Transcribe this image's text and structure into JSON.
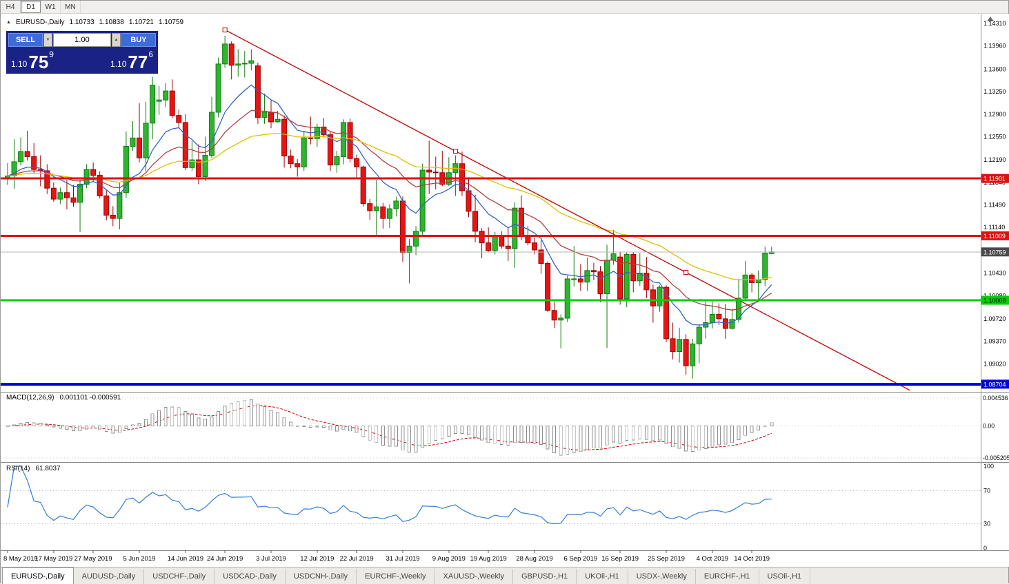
{
  "toolbar": {
    "timeframes": [
      {
        "label": "H4",
        "active": false
      },
      {
        "label": "D1",
        "active": true
      },
      {
        "label": "W1",
        "active": false
      },
      {
        "label": "MN",
        "active": false
      }
    ]
  },
  "icons": {
    "lot_down": "▼",
    "lot_up": "▲",
    "chart_marker": "▲"
  },
  "chart": {
    "symbol_period": "EURUSD-,Daily",
    "open": "1.10733",
    "high": "1.10838",
    "low": "1.10721",
    "close": "1.10759"
  },
  "trade_panel": {
    "sell_label": "SELL",
    "buy_label": "BUY",
    "lot_size": "1.00",
    "sell_price": {
      "prefix": "1.10",
      "pips": "75",
      "pipette": "9"
    },
    "buy_price": {
      "prefix": "1.10",
      "pips": "77",
      "pipette": "6"
    },
    "panel_color": "#1B2286",
    "button_color": "#3D6CD9"
  },
  "chart_data": {
    "type": "candlestick",
    "symbol": "EURUSD",
    "period": "Daily",
    "style": {
      "up_color": "#2FB42F",
      "up_border": "#0E7C0E",
      "down_color": "#E81414",
      "down_border": "#9C0000"
    },
    "candles": [
      [
        1.119,
        1.1214,
        1.118,
        1.1194
      ],
      [
        1.1194,
        1.1251,
        1.1174,
        1.1216
      ],
      [
        1.1216,
        1.1254,
        1.121,
        1.1232
      ],
      [
        1.1232,
        1.1264,
        1.1218,
        1.1224
      ],
      [
        1.1224,
        1.1245,
        1.1198,
        1.1204
      ],
      [
        1.1204,
        1.1226,
        1.1178,
        1.1202
      ],
      [
        1.1202,
        1.1212,
        1.1166,
        1.1175
      ],
      [
        1.1175,
        1.1184,
        1.1154,
        1.1158
      ],
      [
        1.1158,
        1.1176,
        1.115,
        1.1168
      ],
      [
        1.1168,
        1.1188,
        1.1142,
        1.116
      ],
      [
        1.116,
        1.118,
        1.1146,
        1.1153
      ],
      [
        1.1153,
        1.1188,
        1.1107,
        1.1181
      ],
      [
        1.1181,
        1.1212,
        1.1175,
        1.1204
      ],
      [
        1.1204,
        1.1215,
        1.1186,
        1.1195
      ],
      [
        1.1195,
        1.1201,
        1.1159,
        1.1163
      ],
      [
        1.1163,
        1.1172,
        1.1125,
        1.1133
      ],
      [
        1.1133,
        1.1147,
        1.1116,
        1.1128
      ],
      [
        1.1128,
        1.1183,
        1.1111,
        1.1168
      ],
      [
        1.1168,
        1.1263,
        1.116,
        1.124
      ],
      [
        1.124,
        1.1279,
        1.1233,
        1.1253
      ],
      [
        1.1253,
        1.1307,
        1.1215,
        1.1222
      ],
      [
        1.1222,
        1.1309,
        1.1201,
        1.1276
      ],
      [
        1.1276,
        1.1348,
        1.1251,
        1.1335
      ],
      [
        1.131,
        1.1334,
        1.1289,
        1.1312
      ],
      [
        1.1312,
        1.1338,
        1.1301,
        1.1326
      ],
      [
        1.1326,
        1.1344,
        1.1284,
        1.1288
      ],
      [
        1.1288,
        1.1297,
        1.1268,
        1.1277
      ],
      [
        1.1277,
        1.129,
        1.1203,
        1.1207
      ],
      [
        1.1207,
        1.1248,
        1.1202,
        1.1219
      ],
      [
        1.1219,
        1.1243,
        1.1181,
        1.1193
      ],
      [
        1.1193,
        1.1255,
        1.1186,
        1.1226
      ],
      [
        1.1226,
        1.1317,
        1.1222,
        1.1293
      ],
      [
        1.1293,
        1.1378,
        1.1285,
        1.1368
      ],
      [
        1.1368,
        1.1412,
        1.1362,
        1.1399
      ],
      [
        1.1399,
        1.1403,
        1.1344,
        1.1366
      ],
      [
        1.1366,
        1.1391,
        1.1348,
        1.1368
      ],
      [
        1.1368,
        1.1388,
        1.1347,
        1.1369
      ],
      [
        1.1369,
        1.1391,
        1.1358,
        1.1373
      ],
      [
        1.1365,
        1.137,
        1.1275,
        1.1285
      ],
      [
        1.1285,
        1.1322,
        1.1275,
        1.1293
      ],
      [
        1.1293,
        1.1312,
        1.1268,
        1.1278
      ],
      [
        1.1278,
        1.1295,
        1.1277,
        1.1282
      ],
      [
        1.1282,
        1.1288,
        1.1207,
        1.1225
      ],
      [
        1.1225,
        1.1235,
        1.1206,
        1.1213
      ],
      [
        1.1213,
        1.122,
        1.1193,
        1.1208
      ],
      [
        1.1208,
        1.1264,
        1.1202,
        1.1253
      ],
      [
        1.1253,
        1.1286,
        1.1243,
        1.1252
      ],
      [
        1.1252,
        1.1275,
        1.1239,
        1.127
      ],
      [
        1.127,
        1.1284,
        1.1254,
        1.1258
      ],
      [
        1.1258,
        1.1262,
        1.1202,
        1.1211
      ],
      [
        1.1211,
        1.1233,
        1.1199,
        1.1224
      ],
      [
        1.1224,
        1.1282,
        1.1212,
        1.1277
      ],
      [
        1.1277,
        1.1283,
        1.1215,
        1.1221
      ],
      [
        1.1221,
        1.1227,
        1.1192,
        1.1208
      ],
      [
        1.1208,
        1.121,
        1.1146,
        1.1151
      ],
      [
        1.1151,
        1.1158,
        1.1126,
        1.114
      ],
      [
        1.114,
        1.1188,
        1.1101,
        1.1146
      ],
      [
        1.1146,
        1.1152,
        1.1112,
        1.1128
      ],
      [
        1.1128,
        1.115,
        1.1113,
        1.1143
      ],
      [
        1.1143,
        1.1162,
        1.1131,
        1.1155
      ],
      [
        1.1155,
        1.1162,
        1.106,
        1.1075
      ],
      [
        1.1075,
        1.1096,
        1.1027,
        1.1085
      ],
      [
        1.1085,
        1.1116,
        1.1071,
        1.1108
      ],
      [
        1.1108,
        1.1213,
        1.1101,
        1.1203
      ],
      [
        1.1203,
        1.1249,
        1.1166,
        1.12
      ],
      [
        1.12,
        1.1224,
        1.1173,
        1.1199
      ],
      [
        1.1199,
        1.1233,
        1.1178,
        1.1181
      ],
      [
        1.1181,
        1.1223,
        1.1178,
        1.1199
      ],
      [
        1.1199,
        1.1226,
        1.1163,
        1.1213
      ],
      [
        1.1213,
        1.1232,
        1.1163,
        1.1171
      ],
      [
        1.1171,
        1.1192,
        1.113,
        1.1139
      ],
      [
        1.1139,
        1.1165,
        1.1091,
        1.1108
      ],
      [
        1.1108,
        1.1113,
        1.1066,
        1.109
      ],
      [
        1.109,
        1.1114,
        1.1075,
        1.1078
      ],
      [
        1.1078,
        1.1107,
        1.1072,
        1.11
      ],
      [
        1.11,
        1.1108,
        1.1081,
        1.1085
      ],
      [
        1.1085,
        1.1113,
        1.1062,
        1.1081
      ],
      [
        1.1081,
        1.1153,
        1.1051,
        1.1144
      ],
      [
        1.1144,
        1.1164,
        1.1094,
        1.1101
      ],
      [
        1.1101,
        1.1116,
        1.1086,
        1.109
      ],
      [
        1.109,
        1.1098,
        1.1072,
        1.1079
      ],
      [
        1.1079,
        1.1094,
        1.1042,
        1.1058
      ],
      [
        1.1058,
        1.1061,
        1.0983,
        1.0985
      ],
      [
        1.0985,
        1.0998,
        1.0958,
        1.097
      ],
      [
        1.097,
        1.0979,
        1.0926,
        1.0973
      ],
      [
        1.0973,
        1.1039,
        1.0967,
        1.1034
      ],
      [
        1.1034,
        1.1085,
        1.1022,
        1.1034
      ],
      [
        1.1034,
        1.1057,
        1.1015,
        1.1029
      ],
      [
        1.1029,
        1.1067,
        1.1015,
        1.1047
      ],
      [
        1.1047,
        1.1059,
        1.1032,
        1.1045
      ],
      [
        1.1045,
        1.1054,
        1.0998,
        1.1011
      ],
      [
        1.1011,
        1.1087,
        1.0927,
        1.1063
      ],
      [
        1.1063,
        1.111,
        1.1056,
        1.1073
      ],
      [
        1.1068,
        1.1076,
        1.0994,
        1.1003
      ],
      [
        1.1003,
        1.1075,
        1.099,
        1.1072
      ],
      [
        1.1072,
        1.1076,
        1.1013,
        1.1031
      ],
      [
        1.1031,
        1.1074,
        1.1023,
        1.1043
      ],
      [
        1.1043,
        1.1068,
        1.1004,
        1.1017
      ],
      [
        1.1017,
        1.1025,
        1.0966,
        1.0992
      ],
      [
        1.0992,
        1.1024,
        1.0983,
        1.1021
      ],
      [
        1.1021,
        1.1024,
        1.0936,
        1.0941
      ],
      [
        1.0941,
        1.0966,
        1.0909,
        1.0921
      ],
      [
        1.0921,
        1.0958,
        1.0904,
        1.094
      ],
      [
        1.094,
        1.0948,
        1.0885,
        1.0899
      ],
      [
        1.0899,
        1.0941,
        1.0879,
        1.0933
      ],
      [
        1.0933,
        1.0964,
        1.0903,
        1.0959
      ],
      [
        1.0959,
        1.0999,
        1.0941,
        1.0966
      ],
      [
        1.0966,
        1.0999,
        1.0957,
        1.0979
      ],
      [
        1.0979,
        1.0996,
        1.0962,
        1.0972
      ],
      [
        1.0972,
        1.0995,
        1.0941,
        1.0957
      ],
      [
        1.0957,
        1.0987,
        1.0955,
        1.0971
      ],
      [
        1.0971,
        1.1034,
        1.0966,
        1.1004
      ],
      [
        1.1004,
        1.1062,
        1.1002,
        1.104
      ],
      [
        1.104,
        1.1043,
        1.1013,
        1.1028
      ],
      [
        1.1028,
        1.1047,
        1.1001,
        1.1033
      ],
      [
        1.1033,
        1.1084,
        1.1023,
        1.1074
      ],
      [
        1.10733,
        1.10838,
        1.10721,
        1.10759
      ]
    ],
    "date_labels": [
      {
        "index": 0,
        "label": "8 May 2019"
      },
      {
        "index": 7,
        "label": "17 May 2019"
      },
      {
        "index": 13,
        "label": "27 May 2019"
      },
      {
        "index": 20,
        "label": "5 Jun 2019"
      },
      {
        "index": 27,
        "label": "14 Jun 2019"
      },
      {
        "index": 33,
        "label": "24 Jun 2019"
      },
      {
        "index": 40,
        "label": "3 Jul 2019"
      },
      {
        "index": 47,
        "label": "12 Jul 2019"
      },
      {
        "index": 53,
        "label": "22 Jul 2019"
      },
      {
        "index": 60,
        "label": "31 Jul 2019"
      },
      {
        "index": 67,
        "label": "9 Aug 2019"
      },
      {
        "index": 73,
        "label": "19 Aug 2019"
      },
      {
        "index": 80,
        "label": "28 Aug 2019"
      },
      {
        "index": 87,
        "label": "6 Sep 2019"
      },
      {
        "index": 93,
        "label": "16 Sep 2019"
      },
      {
        "index": 100,
        "label": "25 Sep 2019"
      },
      {
        "index": 107,
        "label": "4 Oct 2019"
      },
      {
        "index": 113,
        "label": "14 Oct 2019"
      }
    ],
    "price_axis_labels": [
      "1.14310",
      "1.13960",
      "1.13600",
      "1.13250",
      "1.12900",
      "1.12550",
      "1.12190",
      "1.11840",
      "1.11490",
      "1.11140",
      "1.10790",
      "1.10430",
      "1.10080",
      "1.09720",
      "1.09370",
      "1.09020",
      "1.08670"
    ],
    "hlines": [
      {
        "price": 1.11901,
        "label": "1.11901",
        "color": "#E01010",
        "text_color": "#FFFFFF",
        "thickness": 3
      },
      {
        "price": 1.11009,
        "label": "1.11009",
        "color": "#E01010",
        "text_color": "#FFFFFF",
        "thickness": 3
      },
      {
        "price": 1.10008,
        "label": "1.10008",
        "color": "#00CF00",
        "text_color": "#000000",
        "thickness": 3
      },
      {
        "price": 1.08704,
        "label": "1.08704",
        "color": "#0000E0",
        "text_color": "#FFFFFF",
        "thickness": 4
      }
    ],
    "current_price": {
      "value": 1.10759,
      "label": "1.10759",
      "tag_color": "#4A4A4A",
      "text_color": "#FFFFFF",
      "line_color": "#B5B5B5"
    },
    "trendline": {
      "bar1": 33,
      "price1": 1.1421,
      "bar2": 103,
      "price2": 1.1044,
      "extend_bar": 137,
      "handles": [
        33,
        68,
        103
      ],
      "color": "#C40000"
    },
    "moving_averages": [
      {
        "period": 10,
        "color": "#2E62C8"
      },
      {
        "period": 21,
        "color": "#B04040"
      },
      {
        "period": 45,
        "color": "#E3BE00"
      }
    ],
    "macd": {
      "label": "MACD(12,26,9)",
      "values_text": "0.001101 -0.000591",
      "params": [
        12,
        26,
        9
      ],
      "axis": [
        {
          "label": "0.004536",
          "value": 0.004536
        },
        {
          "label": "0.00",
          "value": 0
        },
        {
          "label": "-0.005205",
          "value": -0.005205
        }
      ],
      "histogram_color": "#909090",
      "signal_color": "#CC0000"
    },
    "rsi": {
      "label": "RSI(14)",
      "value_text": "61.8037",
      "period": 14,
      "axis": [
        {
          "label": "100",
          "value": 100
        },
        {
          "label": "70",
          "value": 70
        },
        {
          "label": "30",
          "value": 30
        },
        {
          "label": "0",
          "value": 0
        }
      ],
      "levels": [
        70,
        30
      ],
      "line_color": "#2F7ED8"
    }
  },
  "tabs": [
    {
      "label": "EURUSD-,Daily",
      "active": true
    },
    {
      "label": "AUDUSD-,Daily",
      "active": false
    },
    {
      "label": "USDCHF-,Daily",
      "active": false
    },
    {
      "label": "USDCAD-,Daily",
      "active": false
    },
    {
      "label": "USDCNH-,Daily",
      "active": false
    },
    {
      "label": "EURCHF-,Weekly",
      "active": false
    },
    {
      "label": "XAUUSD-,Weekly",
      "active": false
    },
    {
      "label": "GBPUSD-,H1",
      "active": false
    },
    {
      "label": "UKOil-,H1",
      "active": false
    },
    {
      "label": "USDX-,Weekly",
      "active": false
    },
    {
      "label": "EURCHF-,H1",
      "active": false
    },
    {
      "label": "USOil-,H1",
      "active": false
    }
  ]
}
